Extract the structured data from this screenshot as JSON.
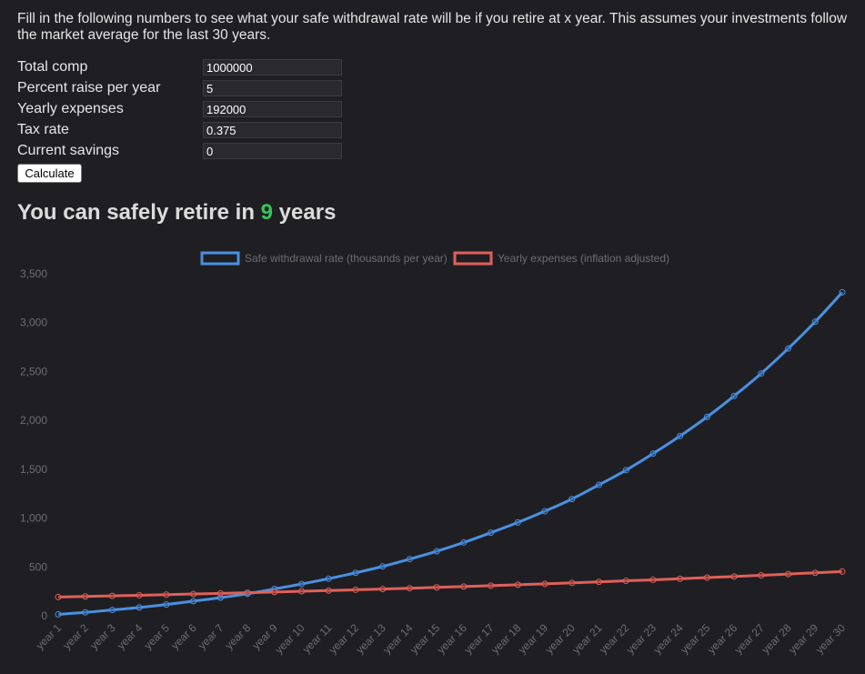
{
  "intro": {
    "text": "Fill in the following numbers to see what your safe withdrawal rate will be if you retire at x year. This assumes your investments follow the market average for the last 30 years."
  },
  "form": {
    "fields": [
      {
        "label": "Total comp",
        "value": "1000000"
      },
      {
        "label": "Percent raise per year",
        "value": "5"
      },
      {
        "label": "Yearly expenses",
        "value": "192000"
      },
      {
        "label": "Tax rate",
        "value": "0.375"
      },
      {
        "label": "Current savings",
        "value": "0"
      }
    ],
    "calculate_label": "Calculate"
  },
  "result": {
    "prefix": "You can safely retire in ",
    "years": "9",
    "suffix": " years"
  },
  "colors": {
    "background": "#1f1f23",
    "accent_green": "#34c759",
    "series_blue": "#4a90e2",
    "series_red": "#e0605a",
    "axis_text": "#6e6e6e"
  },
  "chart_data": {
    "type": "line",
    "legend_position": "top-center",
    "grid": false,
    "ylim": [
      0,
      3500
    ],
    "yticks": [
      0,
      500,
      1000,
      1500,
      2000,
      2500,
      3000,
      3500
    ],
    "ytick_labels": [
      "0",
      "500",
      "1,000",
      "1,500",
      "2,000",
      "2,500",
      "3,000",
      "3,500"
    ],
    "categories": [
      "year 1",
      "year 2",
      "year 3",
      "year 4",
      "year 5",
      "year 6",
      "year 7",
      "year 8",
      "year 9",
      "year 10",
      "year 11",
      "year 12",
      "year 13",
      "year 14",
      "year 15",
      "year 16",
      "year 17",
      "year 18",
      "year 19",
      "year 20",
      "year 21",
      "year 22",
      "year 23",
      "year 24",
      "year 25",
      "year 26",
      "year 27",
      "year 28",
      "year 29",
      "year 30"
    ],
    "series": [
      {
        "name": "Safe withdrawal rate (thousands per year)",
        "color": "#4a90e2",
        "values": [
          15,
          35,
          60,
          85,
          115,
          150,
          185,
          225,
          275,
          325,
          380,
          440,
          505,
          580,
          660,
          750,
          850,
          955,
          1070,
          1195,
          1340,
          1490,
          1660,
          1840,
          2035,
          2250,
          2480,
          2735,
          3010,
          3310
        ]
      },
      {
        "name": "Yearly expenses (inflation adjusted)",
        "color": "#e0605a",
        "values": [
          192,
          198,
          204,
          210,
          216,
          223,
          229,
          236,
          243,
          251,
          258,
          266,
          274,
          282,
          291,
          299,
          308,
          318,
          327,
          337,
          347,
          358,
          368,
          379,
          391,
          402,
          414,
          427,
          440,
          453
        ]
      }
    ]
  }
}
